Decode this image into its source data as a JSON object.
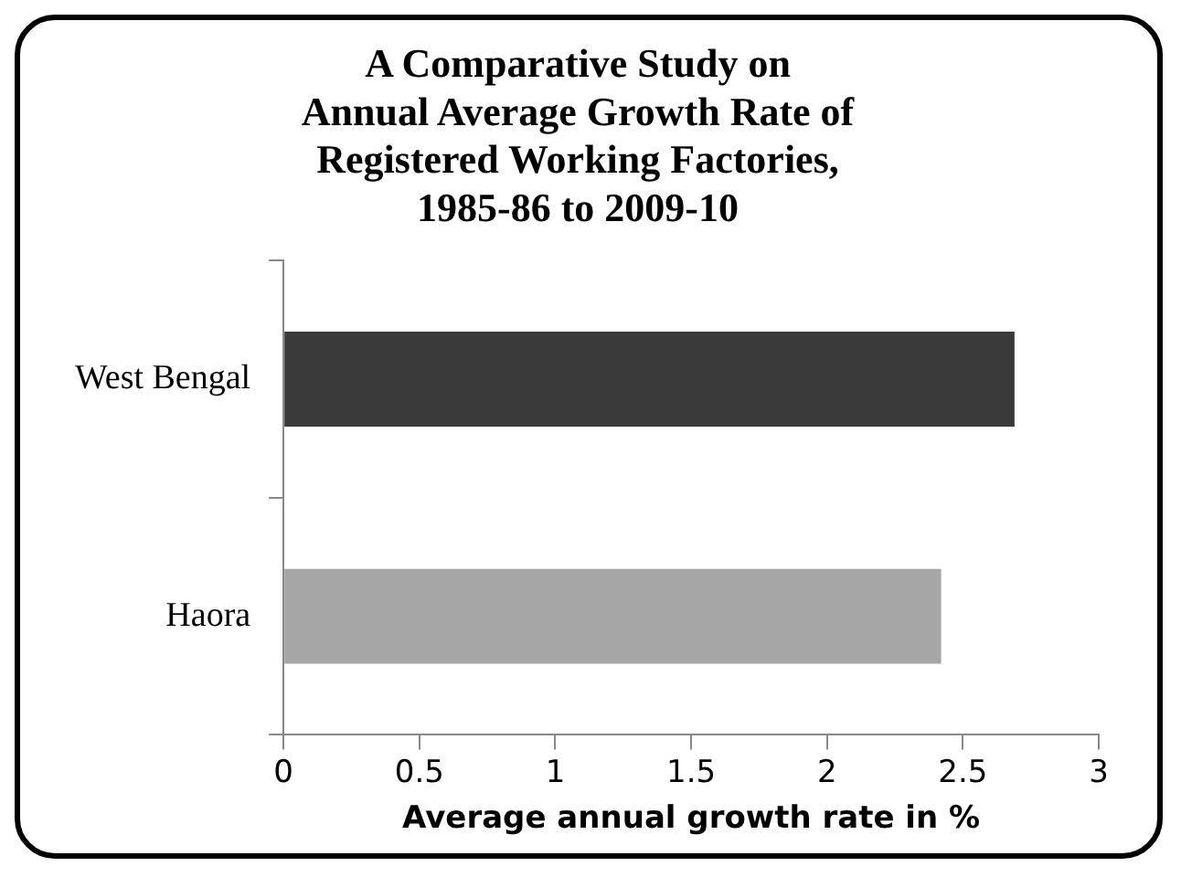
{
  "chart_data": {
    "type": "bar",
    "orientation": "horizontal",
    "title": "A Comparative Study on\nAnnual Average Growth Rate of\nRegistered Working Factories,\n1985-86 to 2009-10",
    "xlabel": "Average annual growth rate in %",
    "categories": [
      "West Bengal",
      "Haora"
    ],
    "values": [
      2.69,
      2.42
    ],
    "colors": [
      "#3a3a3a",
      "#a6a6a6"
    ],
    "xlim": [
      0,
      3
    ],
    "xticks": [
      0,
      0.5,
      1,
      1.5,
      2,
      2.5,
      3
    ],
    "grid": false,
    "legend": false
  }
}
